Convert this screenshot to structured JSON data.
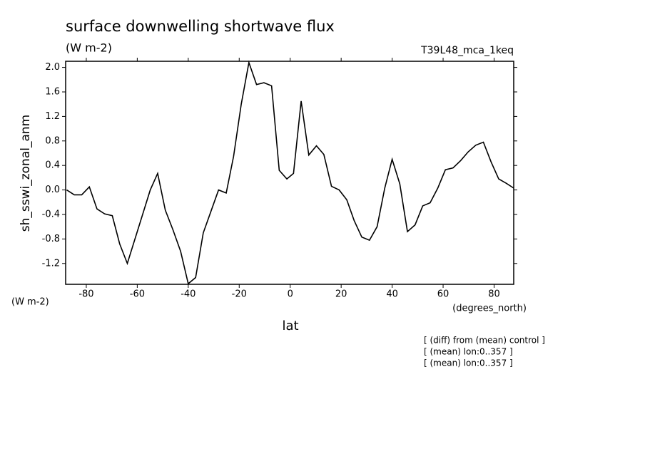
{
  "chart_data": {
    "type": "line",
    "title": "surface downwelling shortwave flux",
    "subtitle": "(W m-2)",
    "run_label": "T39L48_mca_1keq",
    "y_label": "sh_sswi_zonal_anm",
    "y_units": "(W m-2)",
    "x_units": "(degrees_north)",
    "x_label": "lat",
    "notes": [
      "[ (diff) from (mean) control ]",
      "[ (mean) lon:0..357 ]",
      "[ (mean) lon:0..357 ]"
    ],
    "color": "#000000",
    "x": [
      -87.7,
      -84.7,
      -81.8,
      -78.8,
      -75.8,
      -72.8,
      -69.8,
      -66.9,
      -63.9,
      -60.9,
      -57.9,
      -54.9,
      -52.0,
      -49.0,
      -46.0,
      -43.0,
      -40.0,
      -37.1,
      -34.1,
      -31.1,
      -28.1,
      -25.1,
      -22.2,
      -19.2,
      -16.2,
      -13.2,
      -10.3,
      -7.3,
      -4.3,
      -1.3,
      1.3,
      4.3,
      7.3,
      10.3,
      13.2,
      16.2,
      19.2,
      22.2,
      25.1,
      28.1,
      31.1,
      34.1,
      37.1,
      40.0,
      43.0,
      46.0,
      49.0,
      52.0,
      54.9,
      57.9,
      60.9,
      63.9,
      66.9,
      69.8,
      72.8,
      75.8,
      78.8,
      81.8,
      84.7,
      87.7
    ],
    "values": [
      0.0,
      -0.08,
      -0.08,
      0.05,
      -0.31,
      -0.39,
      -0.42,
      -0.88,
      -1.2,
      -0.8,
      -0.4,
      0.0,
      0.27,
      -0.33,
      -0.65,
      -1.0,
      -1.53,
      -1.43,
      -0.7,
      -0.35,
      0.0,
      -0.05,
      0.55,
      1.4,
      2.08,
      1.72,
      1.75,
      1.7,
      0.32,
      0.18,
      0.27,
      1.45,
      0.57,
      0.72,
      0.58,
      0.06,
      0.0,
      -0.16,
      -0.5,
      -0.77,
      -0.82,
      -0.6,
      0.03,
      0.5,
      0.1,
      -0.68,
      -0.57,
      -0.26,
      -0.21,
      0.03,
      0.33,
      0.36,
      0.48,
      0.62,
      0.73,
      0.78,
      0.46,
      0.18,
      0.11,
      0.03
    ],
    "xlim": [
      -88.1,
      87.7
    ],
    "ylim": [
      -1.54,
      2.1
    ],
    "xticks": [
      -80,
      -60,
      -40,
      -20,
      0,
      20,
      40,
      60,
      80
    ],
    "yticks": [
      {
        "value": 2.0,
        "label": "2.0"
      },
      {
        "value": 1.6,
        "label": "1.6"
      },
      {
        "value": 1.2,
        "label": "1.2"
      },
      {
        "value": 0.8,
        "label": "0.8"
      },
      {
        "value": 0.4,
        "label": "0.4"
      },
      {
        "value": 0.0,
        "label": "0.0"
      },
      {
        "value": -0.4,
        "label": "-0.4"
      },
      {
        "value": -0.8,
        "label": "-0.8"
      },
      {
        "value": -1.2,
        "label": "-1.2"
      }
    ]
  }
}
